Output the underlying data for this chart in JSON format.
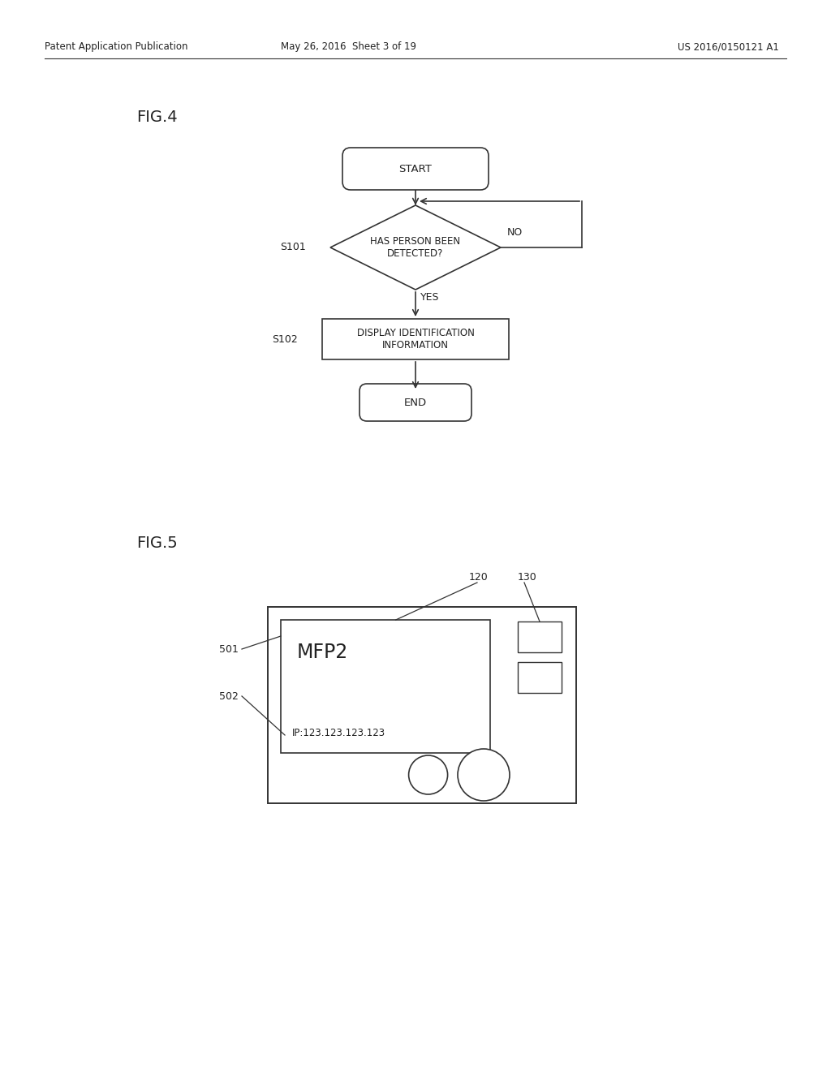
{
  "bg_color": "#ffffff",
  "header_left": "Patent Application Publication",
  "header_mid": "May 26, 2016  Sheet 3 of 19",
  "header_right": "US 2016/0150121 A1",
  "fig4_label": "FIG.4",
  "fig5_label": "FIG.5",
  "line_color": "#333333",
  "text_color": "#222222",
  "flowchart": {
    "start_text": "START",
    "decision_text": "HAS PERSON BEEN\nDETECTED?",
    "process_text": "DISPLAY IDENTIFICATION\nINFORMATION",
    "end_text": "END",
    "s101_label": "S101",
    "s102_label": "S102",
    "yes_label": "YES",
    "no_label": "NO"
  },
  "device": {
    "label_120": "120",
    "label_130": "130",
    "label_501": "501",
    "label_502": "502",
    "mfp_text": "MFP2",
    "ip_text": "IP:123.123.123.123"
  }
}
